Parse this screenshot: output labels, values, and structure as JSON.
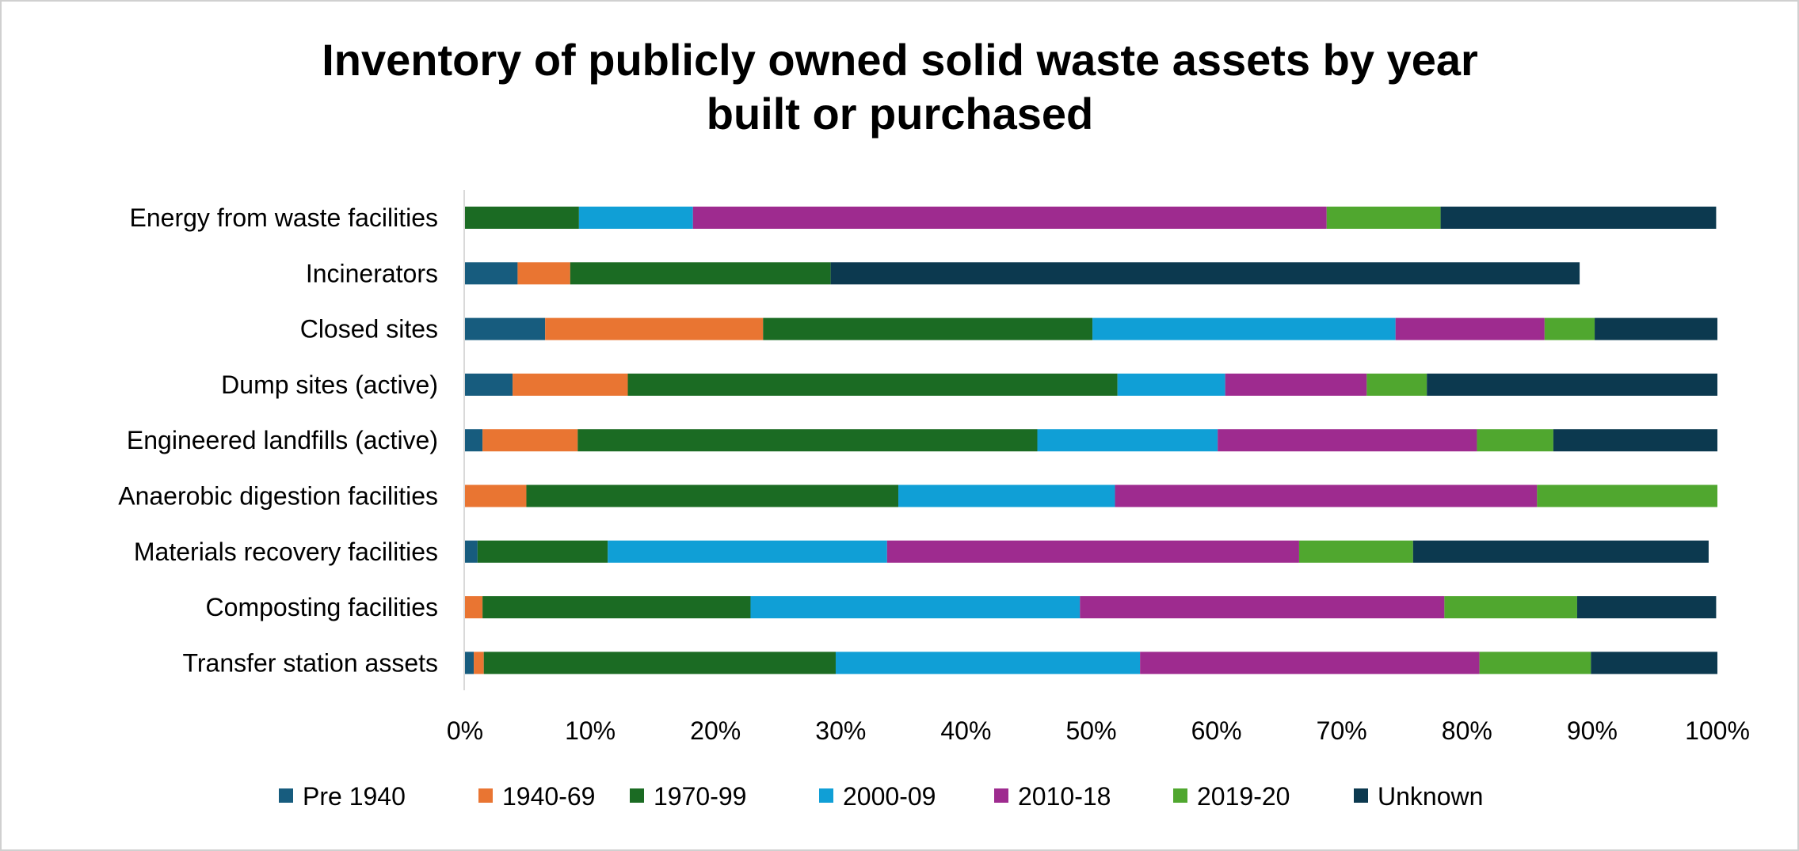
{
  "chart_data": {
    "type": "bar",
    "orientation": "horizontal",
    "stacked": true,
    "title": [
      "Inventory of publicly owned solid waste assets by year",
      "built or purchased"
    ],
    "xlabel": "",
    "ylabel": "",
    "xlim": [
      0,
      100
    ],
    "x_ticks": [
      "0%",
      "10%",
      "20%",
      "30%",
      "40%",
      "50%",
      "60%",
      "70%",
      "80%",
      "90%",
      "100%"
    ],
    "grid": false,
    "legend_position": "bottom",
    "categories": [
      "Energy from waste facilities",
      "Incinerators",
      "Closed sites",
      "Dump sites (active)",
      "Engineered landfills (active)",
      "Anaerobic digestion facilities",
      "Materials recovery facilities",
      "Composting facilities",
      "Transfer station assets"
    ],
    "series": [
      {
        "name": "Pre 1940",
        "color": "#175c7e",
        "values": [
          0,
          4.2,
          6.4,
          3.8,
          1.4,
          0,
          1.0,
          0,
          0.7
        ]
      },
      {
        "name": "1940-69",
        "color": "#e97532",
        "values": [
          0,
          4.2,
          17.4,
          9.2,
          7.6,
          4.9,
          0,
          1.4,
          0.8
        ]
      },
      {
        "name": "1970-99",
        "color": "#1b6b23",
        "values": [
          9.1,
          20.8,
          26.3,
          39.1,
          36.7,
          29.7,
          10.4,
          21.4,
          28.1
        ]
      },
      {
        "name": "2000-09",
        "color": "#109fd6",
        "values": [
          9.1,
          0,
          24.2,
          8.6,
          14.4,
          17.3,
          22.3,
          26.3,
          24.3
        ]
      },
      {
        "name": "2010-18",
        "color": "#9e2b8f",
        "values": [
          50.6,
          0,
          11.9,
          11.3,
          20.7,
          33.7,
          32.9,
          29.1,
          27.1
        ]
      },
      {
        "name": "2019-20",
        "color": "#50a72f",
        "values": [
          9.1,
          0,
          4.0,
          4.8,
          6.1,
          14.4,
          9.1,
          10.6,
          8.9
        ]
      },
      {
        "name": "Unknown",
        "color": "#0c394f",
        "values": [
          22.0,
          59.8,
          9.8,
          23.2,
          13.1,
          0,
          23.6,
          11.1,
          10.1
        ]
      }
    ]
  }
}
